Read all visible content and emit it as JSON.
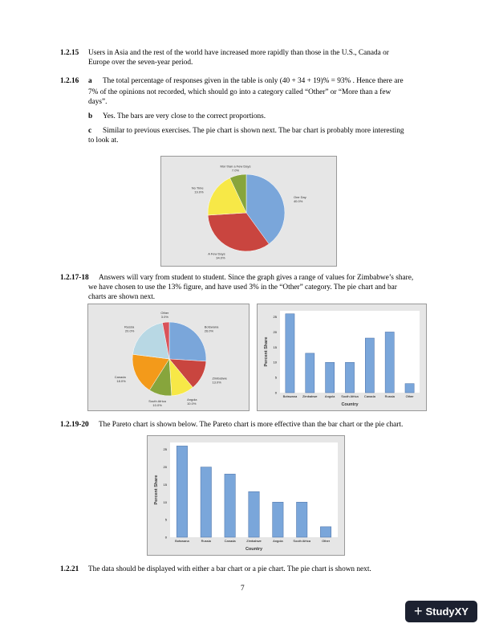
{
  "sections": [
    {
      "num": "1.2.15",
      "text": "Users in Asia and the rest of the world have increased more rapidly than those in the U.S., Canada or",
      "text2": "Europe over the seven-year period."
    },
    {
      "num": "1.2.16",
      "a_label": "a",
      "a_text": "The total percentage of responses given in the table is only  (40 + 34 + 19)% = 93% .  Hence there are",
      "a_text2": "7% of the opinions not recorded, which should go into a category called “Other” or “More than a few",
      "a_text3": "days”.",
      "b_label": "b",
      "b_text": "Yes. The bars are very close to the correct proportions.",
      "c_label": "c",
      "c_text": "Similar to previous exercises.  The pie chart is shown next.  The bar chart is probably more interesting",
      "c_text2": "to look at."
    },
    {
      "num": "1.2.17-18",
      "text": "Answers will vary from student to student.  Since the graph gives a range of values for Zimbabwe’s share,",
      "text2": "we have chosen to use the 13% figure, and have used 3% in the “Other” category. The pie chart and bar",
      "text3": "charts are shown next."
    },
    {
      "num": "1.2.19-20",
      "text": "The Pareto chart is shown below. The Pareto chart is more effective than the bar chart or the pie chart."
    },
    {
      "num": "1.2.21",
      "text": "The data should be displayed with either a bar chart or a pie chart.  The pie chart is shown next."
    }
  ],
  "page_number": "7",
  "logo": {
    "text": "StudyXY"
  },
  "chart_data": [
    {
      "type": "pie",
      "labels": [
        "One Day",
        "A Few Days",
        "No Time",
        "Mor than a Few Days"
      ],
      "values": [
        40.0,
        34.0,
        19.0,
        7.0
      ],
      "value_labels": [
        "40.0%",
        "34.0%",
        "19.0%",
        "7.0%"
      ],
      "colors": [
        "#7aa6da",
        "#c9453f",
        "#f7e847",
        "#87a53c"
      ]
    },
    {
      "type": "pie",
      "labels": [
        "Botswana",
        "Zimbabwe",
        "Angola",
        "South Africa",
        "Canada",
        "Russia",
        "Other"
      ],
      "values": [
        26,
        13,
        10,
        10,
        18,
        20,
        3
      ],
      "value_labels": [
        "26.0%",
        "13.0%",
        "10.0%",
        "10.0%",
        "18.0%",
        "20.0%",
        "3.0%"
      ],
      "colors": [
        "#7aa6da",
        "#c9453f",
        "#f7e847",
        "#87a53c",
        "#f39a1a",
        "#b8d8e4",
        "#d9535a"
      ]
    },
    {
      "type": "bar",
      "categories": [
        "Botswana",
        "Zimbabwe",
        "Angola",
        "South Africa",
        "Canada",
        "Russia",
        "Other"
      ],
      "values": [
        26,
        13,
        10,
        10,
        18,
        20,
        3
      ],
      "xlabel": "Country",
      "ylabel": "Percent Share",
      "yticks": [
        "0",
        "5",
        "10",
        "15",
        "20",
        "25"
      ],
      "ylim": [
        0,
        27
      ],
      "color": "#7aa6da"
    },
    {
      "type": "bar",
      "categories": [
        "Botswana",
        "Russia",
        "Canada",
        "Zimbabwe",
        "Angola",
        "South Africa",
        "Other"
      ],
      "values": [
        26,
        20,
        18,
        13,
        10,
        10,
        3
      ],
      "xlabel": "Country",
      "ylabel": "Percent Share",
      "yticks": [
        "0",
        "5",
        "10",
        "15",
        "20",
        "25"
      ],
      "ylim": [
        0,
        27
      ],
      "color": "#7aa6da"
    }
  ]
}
